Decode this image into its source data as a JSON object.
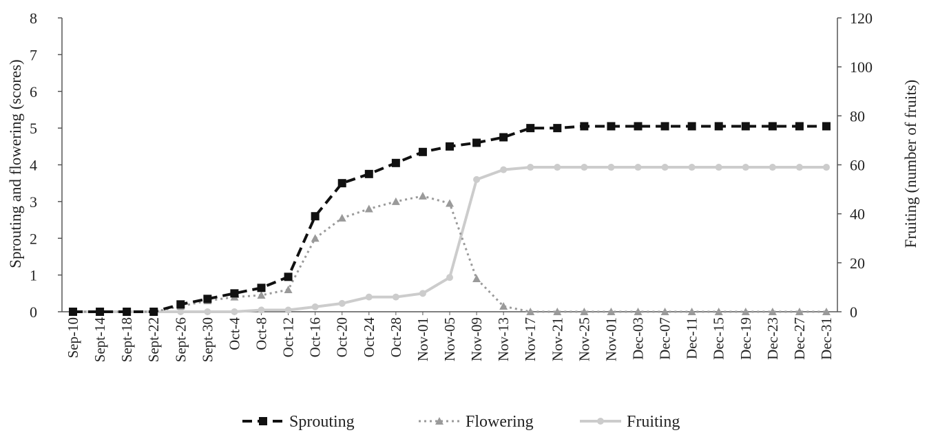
{
  "chart_data": {
    "type": "line",
    "categories": [
      "Sep-10",
      "Sept-14",
      "Sept-18",
      "Sept-22",
      "Sept-26",
      "Sept-30",
      "Oct-4",
      "Oct-8",
      "Oct-12",
      "Oct-16",
      "Oct-20",
      "Oct-24",
      "Oct-28",
      "Nov-01",
      "Nov-05",
      "Nov-09",
      "Nov-13",
      "Nov-17",
      "Nov-21",
      "Nov-25",
      "Nov-01",
      "Dec-03",
      "Dec-07",
      "Dec-11",
      "Dec-15",
      "Dec-19",
      "Dec-23",
      "Dec-27",
      "Dec-31"
    ],
    "y_left": {
      "label": "Sprouting  and flowering  (scores)",
      "ylim": [
        0,
        8
      ],
      "ticks": [
        "0",
        "1",
        "2",
        "3",
        "4",
        "5",
        "6",
        "7",
        "8"
      ]
    },
    "y_right": {
      "label": "Fruiting  (number  of fruits)",
      "ylim": [
        0,
        120
      ],
      "ticks": [
        "0",
        "20",
        "40",
        "60",
        "80",
        "100",
        "120"
      ]
    },
    "series": [
      {
        "name": "Sprouting",
        "axis": "left",
        "color": "#111111",
        "style": "dashed",
        "marker": "square",
        "values": [
          0,
          0,
          0,
          0,
          0.2,
          0.35,
          0.5,
          0.65,
          0.95,
          2.6,
          3.5,
          3.75,
          4.05,
          4.35,
          4.5,
          4.6,
          4.75,
          5.0,
          5.0,
          5.05,
          5.05,
          5.05,
          5.05,
          5.05,
          5.05,
          5.05,
          5.05,
          5.05,
          5.05
        ]
      },
      {
        "name": "Flowering",
        "axis": "left",
        "color": "#9a9a9a",
        "style": "dotted",
        "marker": "triangle",
        "values": [
          0,
          0,
          0,
          0,
          0.15,
          0.3,
          0.4,
          0.45,
          0.6,
          2.0,
          2.55,
          2.8,
          3.0,
          3.15,
          2.95,
          0.9,
          0.15,
          0,
          0,
          0,
          0,
          0,
          0,
          0,
          0,
          0,
          0,
          0,
          0
        ]
      },
      {
        "name": "Fruiting",
        "axis": "right",
        "color": "#cccccc",
        "style": "solid",
        "marker": "circle",
        "values": [
          0,
          0,
          0,
          0,
          0,
          0,
          0,
          0.7,
          0.7,
          2,
          3.4,
          6,
          6,
          7.5,
          14,
          54,
          58,
          59,
          59,
          59,
          59,
          59,
          59,
          59,
          59,
          59,
          59,
          59,
          59
        ]
      }
    ],
    "legend_position": "bottom"
  }
}
